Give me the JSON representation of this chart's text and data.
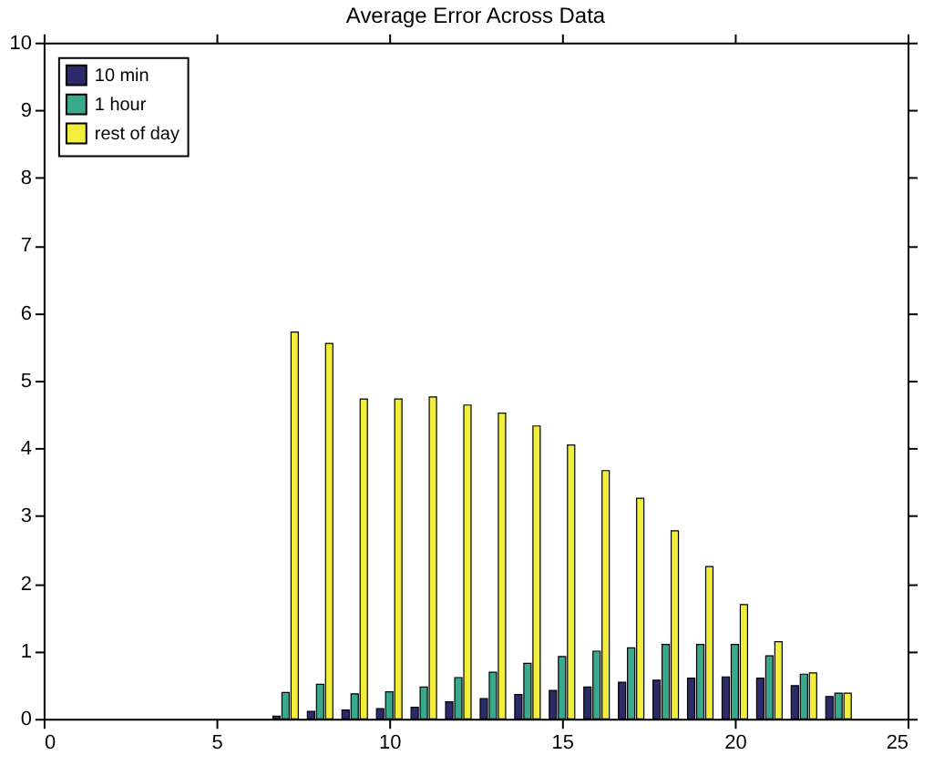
{
  "chart_data": {
    "type": "bar",
    "title": "Average Error Across Data",
    "x": [
      7,
      8,
      9,
      10,
      11,
      12,
      13,
      14,
      15,
      16,
      17,
      18,
      19,
      20,
      21,
      22,
      23
    ],
    "series": [
      {
        "name": "10 min",
        "color": "#2b2a6b",
        "values": [
          0.04,
          0.11,
          0.13,
          0.15,
          0.17,
          0.25,
          0.3,
          0.36,
          0.42,
          0.47,
          0.54,
          0.57,
          0.6,
          0.62,
          0.6,
          0.49,
          0.33
        ]
      },
      {
        "name": "1 hour",
        "color": "#3aa88c",
        "values": [
          0.39,
          0.51,
          0.37,
          0.4,
          0.47,
          0.61,
          0.69,
          0.82,
          0.92,
          1.0,
          1.05,
          1.1,
          1.1,
          1.1,
          0.93,
          0.66,
          0.38
        ]
      },
      {
        "name": "rest of day",
        "color": "#f2ee3c",
        "values": [
          5.72,
          5.55,
          4.73,
          4.73,
          4.76,
          4.64,
          4.52,
          4.33,
          4.05,
          3.67,
          3.26,
          2.78,
          2.25,
          1.69,
          1.14,
          0.68,
          0.38
        ]
      }
    ],
    "xlim": [
      0,
      25
    ],
    "xticks": [
      0,
      5,
      10,
      15,
      20,
      25
    ],
    "ylim": [
      0,
      10
    ],
    "yticks": [
      0,
      1,
      2,
      3,
      4,
      5,
      6,
      7,
      8,
      9,
      10
    ],
    "grid": false,
    "legend": "top left"
  }
}
